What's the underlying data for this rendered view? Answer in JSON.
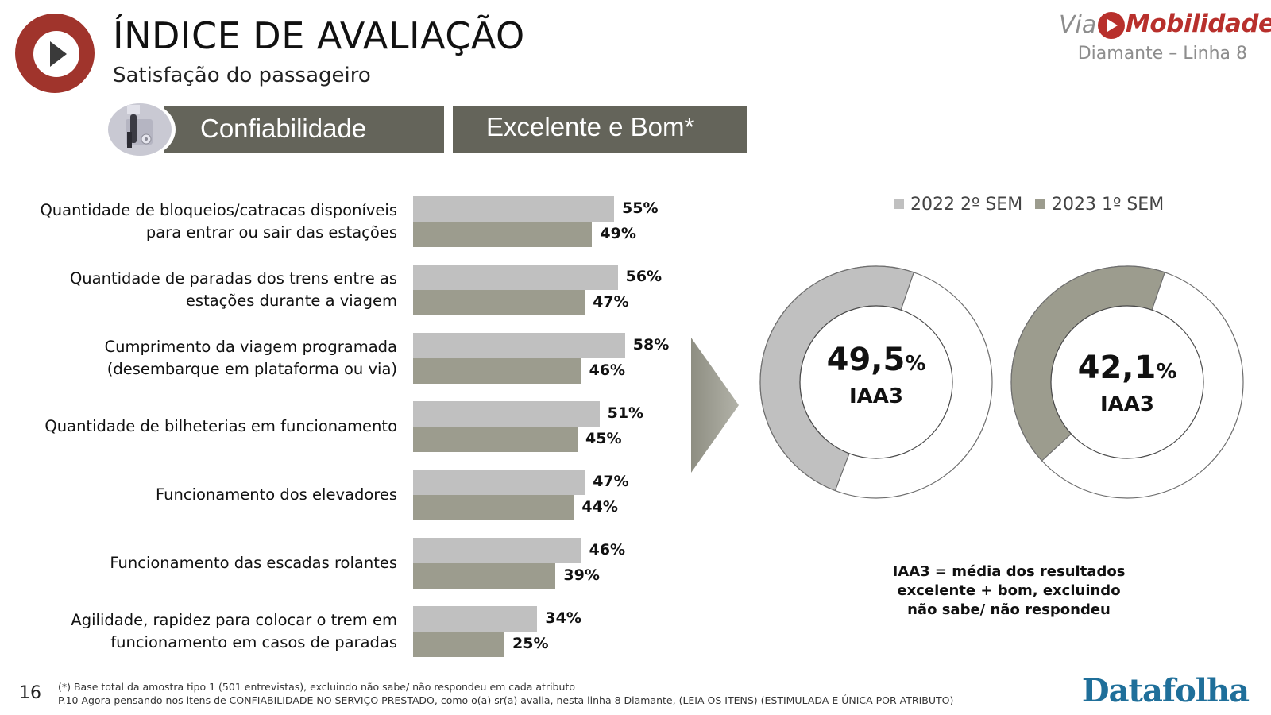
{
  "header": {
    "title": "ÍNDICE DE AVALIAÇÃO",
    "subtitle": "Satisfação do passageiro",
    "brand_prefix": "Via",
    "brand_name": "Mobilidade",
    "line_name": "Diamante – Linha 8"
  },
  "banners": {
    "category": "Confiabilidade",
    "metric": "Excelente e Bom*"
  },
  "chart_data": [
    {
      "type": "bar",
      "orientation": "horizontal",
      "categories": [
        [
          "Quantidade de bloqueios/catracas disponíveis",
          "para entrar ou sair das estações"
        ],
        [
          "Quantidade de paradas dos trens entre as",
          "estações durante a viagem"
        ],
        [
          "Cumprimento da viagem programada",
          "(desembarque em plataforma ou via)"
        ],
        [
          "Quantidade de bilheterias em funcionamento"
        ],
        [
          "Funcionamento dos elevadores"
        ],
        [
          "Funcionamento das escadas rolantes"
        ],
        [
          "Agilidade, rapidez para colocar o trem em",
          "funcionamento em casos de paradas"
        ]
      ],
      "series": [
        {
          "name": "2022 2º SEM",
          "color": "#c0c0c0",
          "values": [
            55,
            56,
            58,
            51,
            47,
            46,
            34
          ],
          "labels": [
            "55%",
            "56%",
            "58%",
            "51%",
            "47%",
            "46%",
            "34%"
          ]
        },
        {
          "name": "2023 1º SEM",
          "color": "#9c9c8e",
          "values": [
            49,
            47,
            46,
            45,
            44,
            39,
            25
          ],
          "labels": [
            "49%",
            "47%",
            "46%",
            "45%",
            "44%",
            "39%",
            "25%"
          ]
        }
      ],
      "unit": "%",
      "legend_position": "top-right"
    },
    {
      "type": "pie",
      "variant": "donut",
      "series": "2022 2º SEM",
      "value": 49.5,
      "value_label": "49,5",
      "unit": "%",
      "label": "IAA3",
      "color": "#c0c0c0"
    },
    {
      "type": "pie",
      "variant": "donut",
      "series": "2023 1º SEM",
      "value": 42.1,
      "value_label": "42,1",
      "unit": "%",
      "label": "IAA3",
      "color": "#9c9c8e"
    }
  ],
  "iaa_note": "IAA3 = média dos resultados excelente + bom, excluindo não sabe/ não respondeu",
  "footer": {
    "page_number": "16",
    "note1": "(*) Base total da amostra tipo 1 (501 entrevistas), excluindo não sabe/ não respondeu em cada atributo",
    "note2": "P.10 Agora pensando nos itens de CONFIABILIDADE NO SERVIÇO PRESTADO, como o(a) sr(a) avalia, nesta linha 8 Diamante, (LEIA OS ITENS) (ESTIMULADA E ÚNICA POR ATRIBUTO)",
    "source_logo": "Datafolha"
  },
  "colors": {
    "accent_red": "#a0342c",
    "banner": "#64645a",
    "brand_red": "#b8302c",
    "source_blue": "#1f6f9a"
  }
}
